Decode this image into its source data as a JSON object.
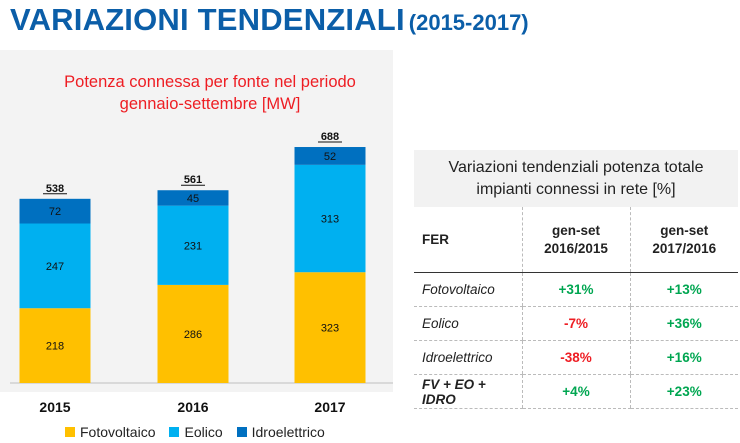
{
  "header": {
    "title": "VARIAZIONI TENDENZIALI",
    "period": "(2015-2017)"
  },
  "chart_data": {
    "type": "bar",
    "stacked": true,
    "title": "Potenza connessa per fonte nel periodo gennaio-settembre [MW]",
    "title_lines": [
      "Potenza connessa per fonte nel periodo",
      "gennaio-settembre [MW]"
    ],
    "categories": [
      "2015",
      "2016",
      "2017"
    ],
    "series": [
      {
        "name": "Fotovoltaico",
        "color": "#ffc000",
        "values": [
          218,
          286,
          323
        ]
      },
      {
        "name": "Eolico",
        "color": "#00b0f0",
        "values": [
          247,
          231,
          313
        ]
      },
      {
        "name": "Idroelettrico",
        "color": "#0070c0",
        "values": [
          72,
          45,
          52
        ]
      }
    ],
    "totals": [
      538,
      561,
      688
    ],
    "legend_position": "bottom"
  },
  "table": {
    "title_lines": [
      "Variazioni tendenziali potenza totale",
      "impianti connessi in rete [%]"
    ],
    "columns": {
      "fer": "FER",
      "c1_line1": "gen-set",
      "c1_line2": "2016/2015",
      "c2_line1": "gen-set",
      "c2_line2": "2017/2016"
    },
    "rows": [
      {
        "name": "Fotovoltaico",
        "v1": "+31%",
        "v2": "+13%"
      },
      {
        "name": "Eolico",
        "v1": "-7%",
        "v2": "+36%"
      },
      {
        "name": "Idroelettrico",
        "v1": "-38%",
        "v2": "+16%"
      },
      {
        "name": "FV + EO + IDRO",
        "v1": "+4%",
        "v2": "+23%"
      }
    ],
    "colors": {
      "positive": "#00a651",
      "negative": "#ee1d23"
    }
  }
}
